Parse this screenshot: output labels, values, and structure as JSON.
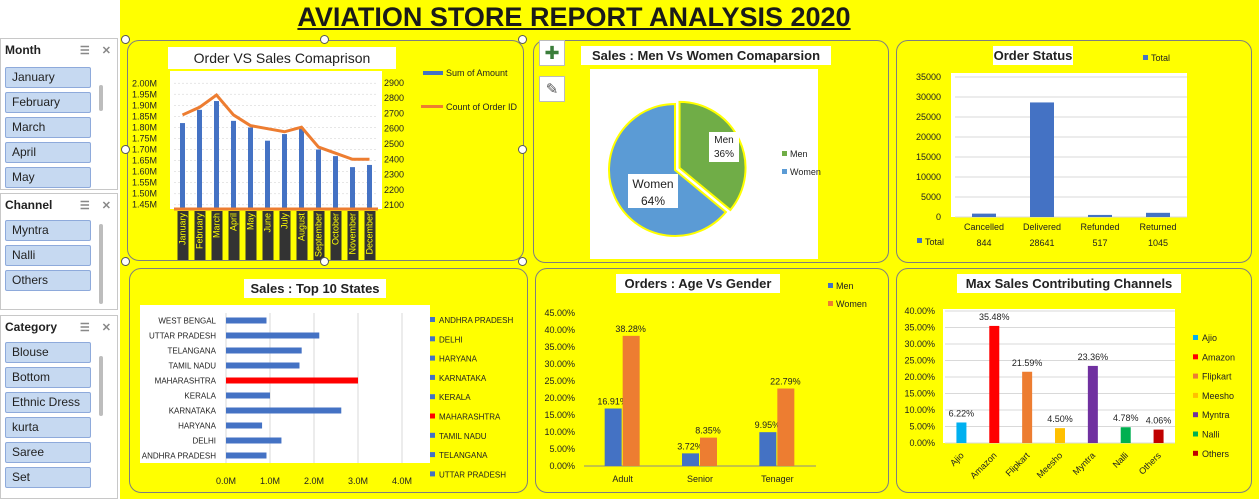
{
  "title": "AVIATION STORE REPORT ANALYSIS 2020",
  "slicers": [
    {
      "name": "Month",
      "items": [
        "January",
        "February",
        "March",
        "April",
        "May"
      ]
    },
    {
      "name": "Channel",
      "items": [
        "Myntra",
        "Nalli",
        "Others"
      ]
    },
    {
      "name": "Category",
      "items": [
        "Blouse",
        "Bottom",
        "Ethnic Dress",
        "kurta",
        "Saree",
        "Set"
      ]
    }
  ],
  "colors": {
    "blue": "#4472c4",
    "orange": "#ed7d31",
    "green": "#70ad47",
    "piebLue": "#5b9bd5",
    "red": "#ff0000"
  },
  "chart_data": [
    {
      "type": "bar",
      "title": "Order VS Sales Comaprison",
      "categories": [
        "January",
        "February",
        "March",
        "April",
        "May",
        "June",
        "July",
        "August",
        "September",
        "October",
        "November",
        "December"
      ],
      "series": [
        {
          "name": "Sum of Amount",
          "axis": "left",
          "values": [
            1.82,
            1.88,
            1.92,
            1.83,
            1.8,
            1.74,
            1.77,
            1.8,
            1.7,
            1.67,
            1.62,
            1.63
          ]
        },
        {
          "name": "Count of Order ID",
          "axis": "right",
          "type": "line",
          "values": [
            2690,
            2740,
            2820,
            2690,
            2620,
            2600,
            2580,
            2610,
            2480,
            2440,
            2400,
            2400
          ]
        }
      ],
      "left_ticks": [
        "2.00M",
        "1.95M",
        "1.90M",
        "1.85M",
        "1.80M",
        "1.75M",
        "1.70M",
        "1.65M",
        "1.60M",
        "1.55M",
        "1.50M",
        "1.45M"
      ],
      "right_ticks": [
        "2900",
        "2800",
        "2700",
        "2600",
        "2500",
        "2400",
        "2300",
        "2200",
        "2100"
      ],
      "ylim": [
        1.43,
        2.02
      ],
      "y2lim": [
        2075,
        2925
      ]
    },
    {
      "type": "pie",
      "title": "Sales : Men Vs Women Comaparsion",
      "labels": [
        "Men",
        "Women"
      ],
      "values": [
        36,
        64
      ],
      "data_labels": [
        "Men 36%",
        "Women 64%"
      ]
    },
    {
      "type": "bar",
      "title": "Order Status",
      "categories": [
        "Cancelled",
        "Delivered",
        "Refunded",
        "Returned"
      ],
      "series": [
        {
          "name": "Total",
          "values": [
            844,
            28641,
            517,
            1045
          ]
        }
      ],
      "table_values": [
        "844",
        "28641",
        "517",
        "1045"
      ],
      "yticks": [
        "35000",
        "30000",
        "25000",
        "20000",
        "15000",
        "10000",
        "5000",
        "0"
      ],
      "ylim": [
        0,
        35000
      ]
    },
    {
      "type": "bar",
      "orientation": "horizontal",
      "title": "Sales : Top 10 States",
      "categories": [
        "WEST BENGAL",
        "UTTAR PRADESH",
        "TELANGANA",
        "TAMIL NADU",
        "MAHARASHTRA",
        "KERALA",
        "KARNATAKA",
        "HARYANA",
        "DELHI",
        "ANDHRA PRADESH"
      ],
      "values": [
        0.92,
        2.12,
        1.72,
        1.67,
        3.0,
        1.0,
        2.62,
        0.82,
        1.26,
        0.92
      ],
      "xticks": [
        "0.0M",
        "1.0M",
        "2.0M",
        "3.0M",
        "4.0M"
      ],
      "xlim": [
        0,
        4
      ],
      "legend": [
        "ANDHRA PRADESH",
        "DELHI",
        "HARYANA",
        "KARNATAKA",
        "KERALA",
        "MAHARASHTRA",
        "TAMIL NADU",
        "TELANGANA",
        "UTTAR PRADESH"
      ]
    },
    {
      "type": "bar",
      "title": "Orders : Age Vs Gender",
      "categories": [
        "Adult",
        "Senior",
        "Tenager"
      ],
      "series": [
        {
          "name": "Men",
          "values": [
            16.91,
            3.72,
            9.95
          ],
          "labels": [
            "16.91%",
            "3.72%",
            "9.95%"
          ]
        },
        {
          "name": "Women",
          "values": [
            38.28,
            8.35,
            22.79
          ],
          "labels": [
            "38.28%",
            "8.35%",
            "22.79%"
          ]
        }
      ],
      "yticks": [
        "45.00%",
        "40.00%",
        "35.00%",
        "30.00%",
        "25.00%",
        "20.00%",
        "15.00%",
        "10.00%",
        "5.00%",
        "0.00%"
      ],
      "ylim": [
        0,
        45
      ]
    },
    {
      "type": "bar",
      "title": "Max Sales Contributing Channels",
      "categories": [
        "Ajio",
        "Amazon",
        "Flipkart",
        "Meesho",
        "Myntra",
        "Nalli",
        "Others"
      ],
      "values": [
        6.22,
        35.48,
        21.59,
        4.5,
        23.36,
        4.78,
        4.06
      ],
      "labels": [
        "6.22%",
        "35.48%",
        "21.59%",
        "4.50%",
        "23.36%",
        "4.78%",
        "4.06%"
      ],
      "colors": [
        "#00b0f0",
        "#ff0000",
        "#ed7d31",
        "#ffc000",
        "#7030a0",
        "#00b050",
        "#c00000"
      ],
      "yticks": [
        "40.00%",
        "35.00%",
        "30.00%",
        "25.00%",
        "20.00%",
        "15.00%",
        "10.00%",
        "5.00%",
        "0.00%"
      ],
      "ylim": [
        0,
        40
      ]
    }
  ]
}
